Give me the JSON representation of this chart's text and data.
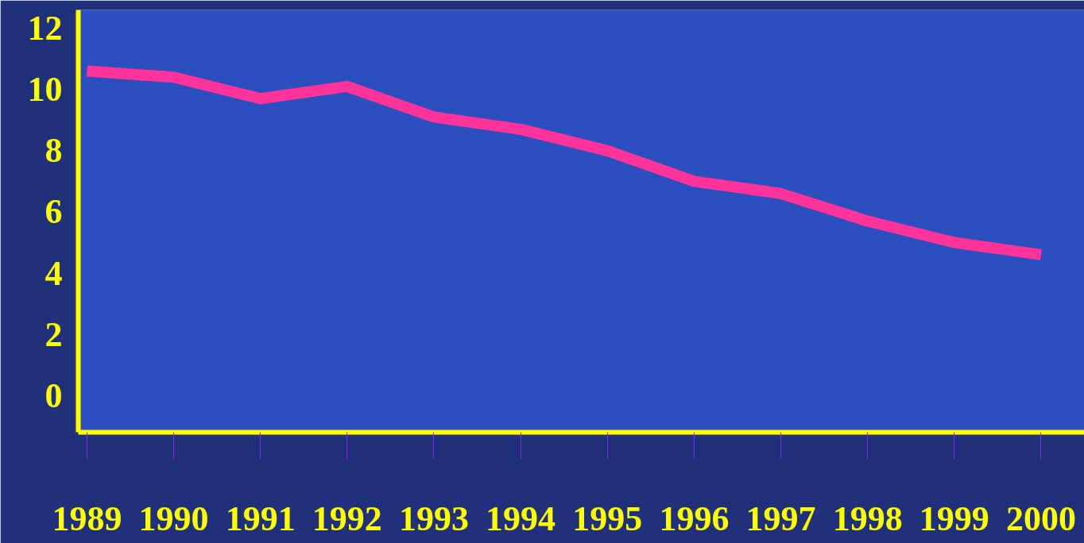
{
  "chart_data": {
    "type": "line",
    "categories": [
      "1989",
      "1990",
      "1991",
      "1992",
      "1993",
      "1994",
      "1995",
      "1996",
      "1997",
      "1998",
      "1999",
      "2000"
    ],
    "series": [
      {
        "color": "#ff3399",
        "values": [
          10.6,
          10.4,
          9.7,
          10.1,
          9.1,
          8.7,
          8.0,
          7.0,
          6.6,
          5.7,
          5.0,
          4.6
        ]
      }
    ],
    "ylim": [
      -1.2,
      12.6
    ],
    "yticks": [
      0,
      2,
      4,
      6,
      8,
      10,
      12
    ],
    "grid": false,
    "marker": "none",
    "line_style": "solid"
  }
}
